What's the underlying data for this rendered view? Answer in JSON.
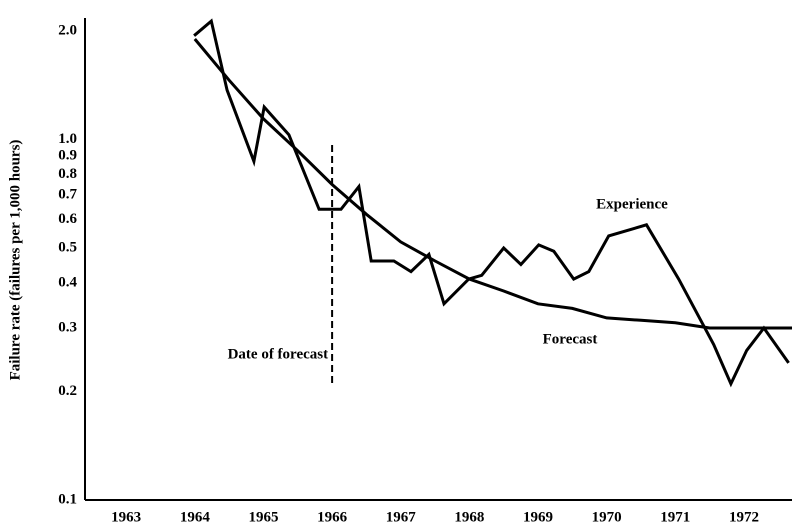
{
  "chart_data": {
    "type": "line",
    "ylabel": "Failure rate (failures per 1,000 hours)",
    "log_y": true,
    "grid": false,
    "xlim": [
      1962.4,
      1972.7
    ],
    "xticks": [
      1963,
      1964,
      1965,
      1966,
      1967,
      1968,
      1969,
      1970,
      1971,
      1972
    ],
    "ylim": [
      0.1,
      2.2
    ],
    "yticks": [
      0.1,
      0.2,
      0.3,
      0.4,
      0.5,
      0.6,
      0.7,
      0.8,
      0.9,
      {
        "value": 1,
        "label": "1.0"
      },
      {
        "value": 2,
        "label": "2.0"
      }
    ],
    "forecast_date": 1966,
    "forecast_date_label": "Date of forecast",
    "series": [
      {
        "name": "Experience",
        "color": "#000000",
        "x": [
          1963.99,
          1964.24,
          1964.47,
          1964.86,
          1965.01,
          1965.37,
          1965.81,
          1966.13,
          1966.39,
          1966.57,
          1966.9,
          1967.15,
          1967.41,
          1967.63,
          1967.99,
          1968.18,
          1968.5,
          1968.75,
          1969.01,
          1969.23,
          1969.52,
          1969.74,
          1970.03,
          1970.58,
          1971.05,
          1971.56,
          1971.81,
          1972.04,
          1972.29,
          1972.65
        ],
        "values": [
          1.94,
          2.13,
          1.37,
          0.87,
          1.23,
          1.03,
          0.64,
          0.64,
          0.74,
          0.46,
          0.46,
          0.43,
          0.48,
          0.35,
          0.41,
          0.42,
          0.5,
          0.45,
          0.51,
          0.49,
          0.41,
          0.43,
          0.54,
          0.58,
          0.41,
          0.27,
          0.21,
          0.26,
          0.3,
          0.24
        ]
      },
      {
        "name": "Forecast",
        "color": "#000000",
        "x": [
          1964,
          1964.5,
          1965,
          1965.5,
          1966,
          1966.5,
          1967,
          1967.5,
          1968,
          1968.5,
          1969,
          1969.5,
          1970,
          1970.5,
          1971,
          1971.5,
          1972,
          1972.7
        ],
        "values": [
          1.9,
          1.46,
          1.14,
          0.93,
          0.75,
          0.62,
          0.52,
          0.46,
          0.41,
          0.38,
          0.35,
          0.34,
          0.32,
          0.315,
          0.31,
          0.3,
          0.3,
          0.3
        ]
      }
    ]
  }
}
